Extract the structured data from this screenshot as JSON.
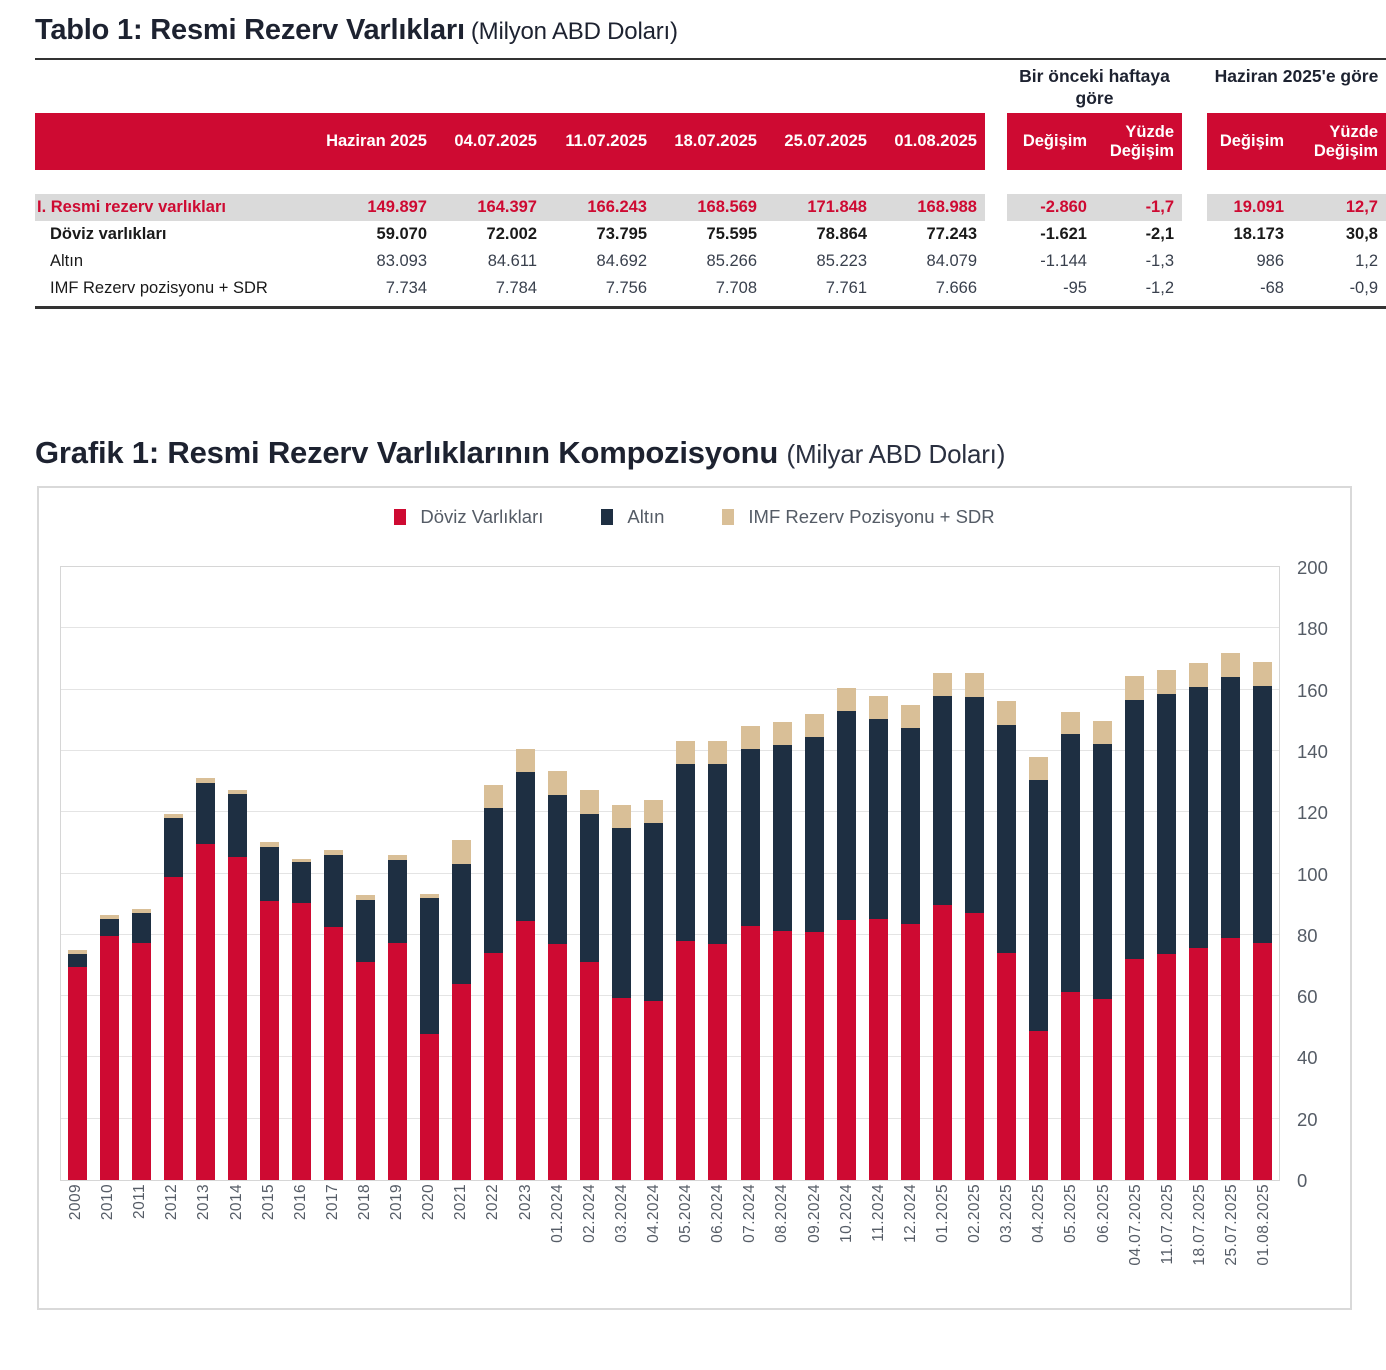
{
  "table": {
    "title": "Tablo 1: Resmi Rezerv Varlıkları",
    "title_unit": "(Milyon ABD Doları)",
    "group_headers": [
      "Bir önceki haftaya göre",
      "Haziran 2025'e göre"
    ],
    "date_headers": [
      "Haziran 2025",
      "04.07.2025",
      "11.07.2025",
      "18.07.2025",
      "25.07.2025",
      "01.08.2025"
    ],
    "change_headers": [
      "Değişim",
      "Yüzde\nDeğişim"
    ],
    "rows": [
      {
        "label": "I. Resmi rezerv varlıkları",
        "style": "total",
        "values": [
          "149.897",
          "164.397",
          "166.243",
          "168.569",
          "171.848",
          "168.988"
        ],
        "chg_week": [
          "-2.860",
          "-1,7"
        ],
        "chg_june": [
          "19.091",
          "12,7"
        ]
      },
      {
        "label": "Döviz varlıkları",
        "style": "bold",
        "values": [
          "59.070",
          "72.002",
          "73.795",
          "75.595",
          "78.864",
          "77.243"
        ],
        "chg_week": [
          "-1.621",
          "-2,1"
        ],
        "chg_june": [
          "18.173",
          "30,8"
        ]
      },
      {
        "label": "Altın",
        "style": "normal",
        "values": [
          "83.093",
          "84.611",
          "84.692",
          "85.266",
          "85.223",
          "84.079"
        ],
        "chg_week": [
          "-1.144",
          "-1,3"
        ],
        "chg_june": [
          "986",
          "1,2"
        ]
      },
      {
        "label": "IMF Rezerv pozisyonu + SDR",
        "style": "normal",
        "values": [
          "7.734",
          "7.784",
          "7.756",
          "7.708",
          "7.761",
          "7.666"
        ],
        "chg_week": [
          "-95",
          "-1,2"
        ],
        "chg_june": [
          "-68",
          "-0,9"
        ]
      }
    ]
  },
  "chart": {
    "title": "Grafik 1: Resmi Rezerv Varlıklarının Kompozisyonu",
    "title_unit": "(Milyar ABD Doları)"
  },
  "chart_data": {
    "type": "bar",
    "stacked": true,
    "title": "Grafik 1: Resmi Rezerv Varlıklarının Kompozisyonu",
    "unit": "Milyar ABD Doları",
    "ylim": [
      0,
      200
    ],
    "yticks": [
      0,
      20,
      40,
      60,
      80,
      100,
      120,
      140,
      160,
      180,
      200
    ],
    "grid": true,
    "legend_position": "top-center",
    "categories": [
      "2009",
      "2010",
      "2011",
      "2012",
      "2013",
      "2014",
      "2015",
      "2016",
      "2017",
      "2018",
      "2019",
      "2020",
      "2021",
      "2022",
      "2023",
      "01.2024",
      "02.2024",
      "03.2024",
      "04.2024",
      "05.2024",
      "06.2024",
      "07.2024",
      "08.2024",
      "09.2024",
      "10.2024",
      "11.2024",
      "12.2024",
      "01.2025",
      "02.2025",
      "03.2025",
      "04.2025",
      "05.2025",
      "06.2025",
      "04.07.2025",
      "11.07.2025",
      "18.07.2025",
      "25.07.2025",
      "01.08.2025"
    ],
    "series": [
      {
        "name": "Döviz Varlıkları",
        "color": "#ce0a32",
        "values": [
          69.5,
          79.5,
          77.5,
          99.0,
          109.5,
          105.5,
          91.0,
          90.5,
          82.5,
          71.0,
          77.5,
          47.5,
          64.0,
          74.0,
          84.5,
          77.0,
          71.0,
          59.5,
          58.5,
          78.0,
          77.1,
          82.9,
          81.4,
          80.9,
          84.7,
          85.3,
          83.4,
          89.9,
          87.2,
          74.0,
          48.5,
          61.5,
          59.1,
          72.0,
          73.8,
          75.6,
          78.9,
          77.2
        ]
      },
      {
        "name": "Altın",
        "color": "#1e2f42",
        "values": [
          4.3,
          5.6,
          9.5,
          19.0,
          20.0,
          20.4,
          17.8,
          13.2,
          23.5,
          20.5,
          27.0,
          44.5,
          39.0,
          47.3,
          48.5,
          48.6,
          48.5,
          55.5,
          58.0,
          57.6,
          58.6,
          57.7,
          60.6,
          63.5,
          68.2,
          65.0,
          64.1,
          68.0,
          70.5,
          74.5,
          82.0,
          84.0,
          83.1,
          84.6,
          84.7,
          85.3,
          85.2,
          84.1
        ]
      },
      {
        "name": "IMF Rezerv Pozisyonu + SDR",
        "color": "#d9bf97",
        "values": [
          1.2,
          1.4,
          1.4,
          1.4,
          1.7,
          1.4,
          1.6,
          1.1,
          1.6,
          1.5,
          1.5,
          1.4,
          8.0,
          7.5,
          7.7,
          7.9,
          7.6,
          7.5,
          7.4,
          7.5,
          7.5,
          7.5,
          7.6,
          7.7,
          7.6,
          7.5,
          7.5,
          7.6,
          7.7,
          7.7,
          7.5,
          7.3,
          7.7,
          7.8,
          7.8,
          7.7,
          7.8,
          7.7
        ]
      }
    ]
  }
}
